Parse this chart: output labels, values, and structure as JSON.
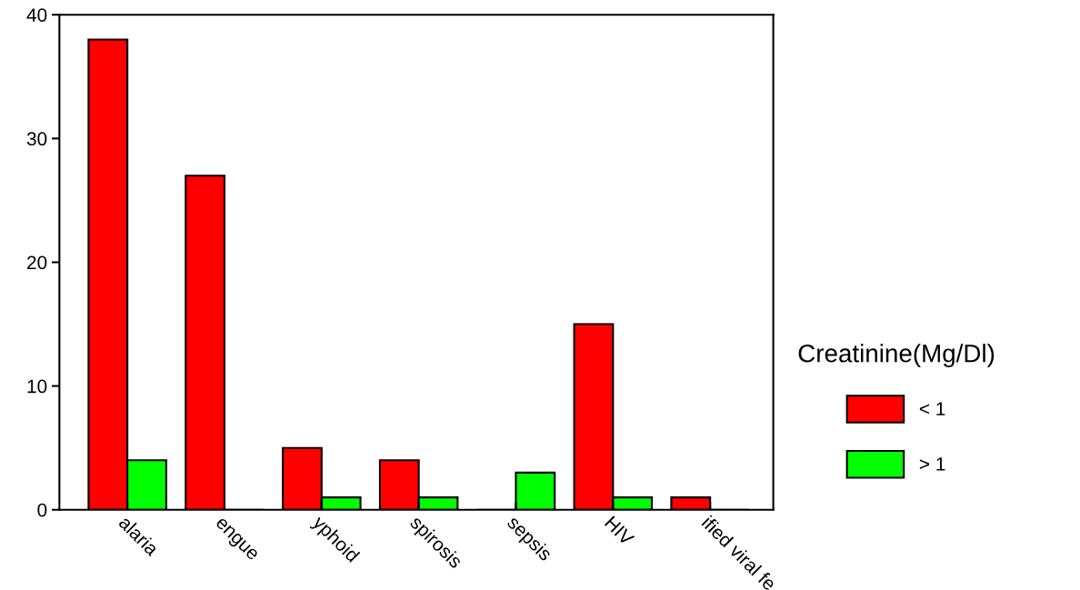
{
  "chart_data": {
    "type": "bar",
    "categories": [
      "alaria",
      "engue",
      "yphoid",
      "spirosis",
      "sepsis",
      "HIV",
      "ified viral fe"
    ],
    "series": [
      {
        "name": "< 1",
        "color": "#ff0000",
        "values": [
          38,
          27,
          5,
          4,
          0,
          15,
          1
        ]
      },
      {
        "name": "> 1",
        "color": "#00ff00",
        "values": [
          4,
          0,
          1,
          1,
          3,
          1,
          0
        ]
      }
    ],
    "legend_title": "Creatinine(Mg/Dl)",
    "legend": "right",
    "ylim": [
      0,
      40
    ],
    "yticks": [
      0,
      10,
      20,
      30,
      40
    ],
    "grid": false
  }
}
